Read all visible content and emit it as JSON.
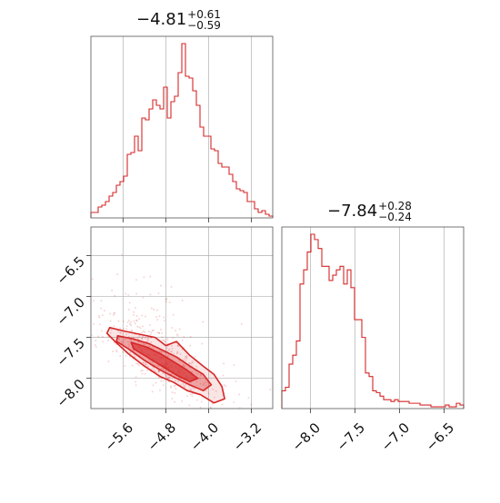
{
  "chart_data": [
    {
      "type": "histogram",
      "panel": "top-left marginal",
      "title": {
        "median": "−4.81",
        "plus": "+0.61",
        "minus": "−0.59"
      },
      "xlim": [
        -6.2,
        -2.8
      ],
      "bin_step": 0.068,
      "values": [
        3,
        3,
        6,
        7,
        9,
        12,
        14,
        18,
        20,
        23,
        35,
        36,
        45,
        37,
        55,
        54,
        60,
        65,
        62,
        60,
        72,
        55,
        64,
        67,
        80,
        96,
        78,
        77,
        70,
        62,
        50,
        45,
        45,
        38,
        37,
        30,
        28,
        28,
        24,
        20,
        16,
        15,
        14,
        9,
        9,
        5,
        3,
        4,
        2,
        1
      ]
    },
    {
      "type": "scatter-contour",
      "panel": "bottom-left joint",
      "xlim": [
        -6.2,
        -2.8
      ],
      "ylim": [
        -8.37,
        -6.15
      ],
      "xticks": [
        "−5.6",
        "−4.8",
        "−4.0",
        "−3.2"
      ],
      "xtick_values": [
        -5.6,
        -4.8,
        -4.0,
        -3.2
      ],
      "yticks": [
        "−6.5",
        "−7.0",
        "−7.5",
        "−8.0"
      ],
      "ytick_values": [
        -6.5,
        -7.0,
        -7.5,
        -8.0
      ],
      "ridge": [
        [
          -5.75,
          -7.45
        ],
        [
          -5.5,
          -7.55
        ],
        [
          -5.2,
          -7.65
        ],
        [
          -4.9,
          -7.78
        ],
        [
          -4.6,
          -7.9
        ],
        [
          -4.3,
          -8.0
        ],
        [
          -4.0,
          -8.1
        ],
        [
          -3.7,
          -8.2
        ]
      ],
      "contours": {
        "outer": [
          [
            -5.85,
            -7.38
          ],
          [
            -5.6,
            -7.42
          ],
          [
            -5.3,
            -7.46
          ],
          [
            -5.0,
            -7.5
          ],
          [
            -4.8,
            -7.6
          ],
          [
            -4.6,
            -7.55
          ],
          [
            -4.35,
            -7.72
          ],
          [
            -4.1,
            -7.85
          ],
          [
            -3.9,
            -7.95
          ],
          [
            -3.75,
            -8.1
          ],
          [
            -3.7,
            -8.25
          ],
          [
            -3.9,
            -8.3
          ],
          [
            -4.15,
            -8.2
          ],
          [
            -4.4,
            -8.15
          ],
          [
            -4.65,
            -8.05
          ],
          [
            -4.9,
            -7.98
          ],
          [
            -5.2,
            -7.85
          ],
          [
            -5.5,
            -7.7
          ],
          [
            -5.75,
            -7.55
          ],
          [
            -5.9,
            -7.45
          ]
        ],
        "mid": [
          [
            -5.7,
            -7.48
          ],
          [
            -5.4,
            -7.52
          ],
          [
            -5.1,
            -7.58
          ],
          [
            -4.85,
            -7.66
          ],
          [
            -4.6,
            -7.74
          ],
          [
            -4.35,
            -7.85
          ],
          [
            -4.1,
            -7.95
          ],
          [
            -3.95,
            -8.08
          ],
          [
            -4.1,
            -8.15
          ],
          [
            -4.35,
            -8.08
          ],
          [
            -4.6,
            -8.0
          ],
          [
            -4.9,
            -7.9
          ],
          [
            -5.2,
            -7.78
          ],
          [
            -5.5,
            -7.64
          ],
          [
            -5.72,
            -7.55
          ]
        ],
        "inner": [
          [
            -5.45,
            -7.56
          ],
          [
            -5.15,
            -7.62
          ],
          [
            -4.9,
            -7.7
          ],
          [
            -4.65,
            -7.8
          ],
          [
            -4.4,
            -7.9
          ],
          [
            -4.2,
            -8.0
          ],
          [
            -4.35,
            -8.04
          ],
          [
            -4.6,
            -7.96
          ],
          [
            -4.85,
            -7.86
          ],
          [
            -5.1,
            -7.76
          ],
          [
            -5.4,
            -7.64
          ]
        ]
      }
    },
    {
      "type": "histogram",
      "panel": "bottom-right marginal",
      "title": {
        "median": "−7.84",
        "plus": "+0.28",
        "minus": "−0.24"
      },
      "xlim": [
        -8.32,
        -6.28
      ],
      "bin_step": 0.0408,
      "xticks": [
        "−8.0",
        "−7.5",
        "−7.0",
        "−6.5"
      ],
      "xtick_values": [
        -8.0,
        -7.5,
        -7.0,
        -6.5
      ],
      "values": [
        10,
        12,
        25,
        30,
        38,
        70,
        78,
        88,
        98,
        95,
        90,
        80,
        80,
        72,
        75,
        78,
        80,
        70,
        78,
        68,
        50,
        50,
        40,
        20,
        18,
        10,
        9,
        7,
        5,
        5,
        4,
        5,
        4,
        4,
        4,
        3,
        3,
        3,
        2,
        2,
        2,
        1,
        1,
        1,
        1,
        2,
        1,
        1,
        3,
        2
      ]
    }
  ]
}
